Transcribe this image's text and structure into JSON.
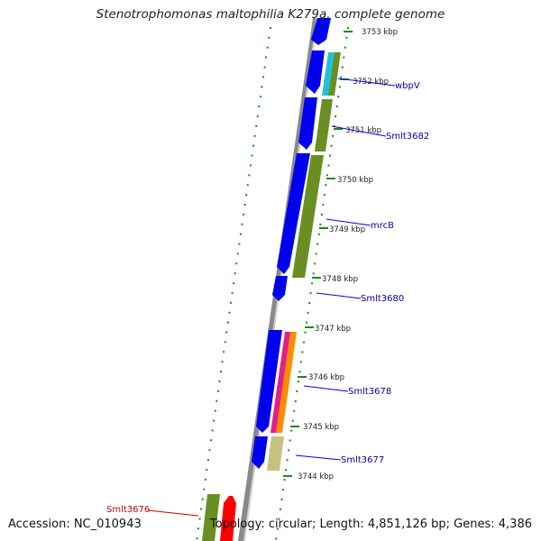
{
  "title": "Stenotrophomonas maltophilia K279a, complete genome",
  "footer": {
    "accession": "Accession: NC_010943",
    "topology": "Topology: circular; Length: 4,851,126 bp; Genes: 4,386"
  },
  "scale_labels": [
    "3753 kbp",
    "3752 kbp",
    "3751 kbp",
    "3750 kbp",
    "3749 kbp",
    "3748 kbp",
    "3747 kbp",
    "3746 kbp",
    "3745 kbp",
    "3744 kbp"
  ],
  "gene_labels": [
    "wbpV",
    "Smlt3682",
    "mrcB",
    "Smlt3680",
    "Smlt3678",
    "Smlt3677",
    "Smlt3676"
  ],
  "colors": {
    "cds": "#0000ee",
    "gene_olive": "#6b8e23",
    "cyan": "#20c0d8",
    "magenta": "#e0208a",
    "orange": "#ff8c00",
    "khaki": "#c8c080",
    "red_gene": "#ff0000",
    "backbone": "#808080",
    "dots": "#1a8a1a",
    "label_blue": "#0000aa",
    "label_red": "#cc0000"
  }
}
